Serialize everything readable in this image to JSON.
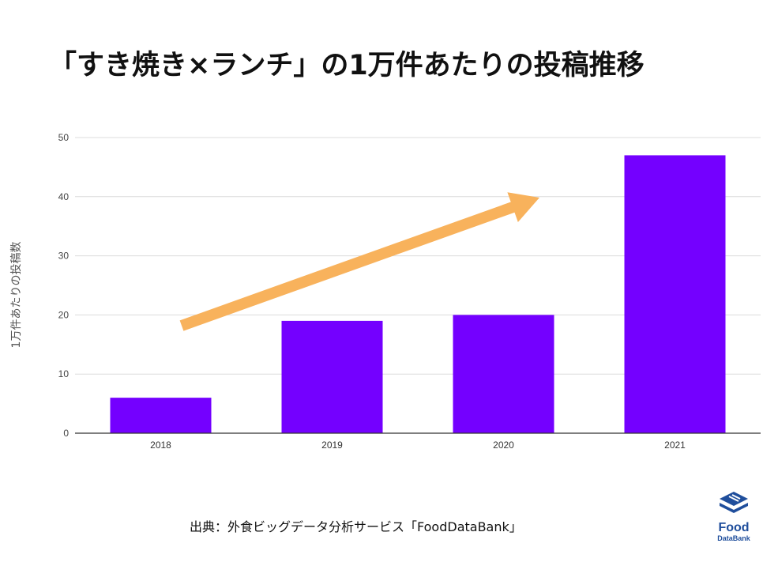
{
  "title": "「すき焼き×ランチ」の1万件あたりの投稿推移",
  "source": "出典：外食ビッグデータ分析サービス「FoodDataBank」",
  "logo": {
    "word": "Food",
    "sub": "DataBank",
    "icon": "food-databank-logo-icon"
  },
  "colors": {
    "bar": "#7400ff",
    "arrow": "#f8b25c",
    "grid": "#dcdcdc",
    "axis": "#333333"
  },
  "chart_data": {
    "type": "bar",
    "title": "「すき焼き×ランチ」の1万件あたりの投稿推移",
    "xlabel": "",
    "ylabel": "1万件あたりの投稿数",
    "categories": [
      "2018",
      "2019",
      "2020",
      "2021"
    ],
    "values": [
      6,
      19,
      20,
      47
    ],
    "ylim": [
      0,
      50
    ],
    "yticks": [
      "0",
      "10",
      "20",
      "30",
      "40",
      "50"
    ],
    "grid": true,
    "annotation": "upward trend arrow"
  }
}
